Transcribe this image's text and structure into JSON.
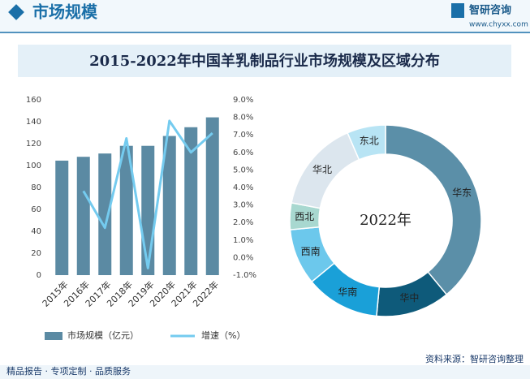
{
  "header": {
    "section": "市场规模",
    "brand": "智研咨询",
    "url": "www.chyxx.com"
  },
  "title": "2015-2022年中国羊乳制品行业市场规模及区域分布",
  "chart_data": [
    {
      "type": "bar",
      "categories": [
        "2015年",
        "2016年",
        "2017年",
        "2018年",
        "2019年",
        "2020年",
        "2021年",
        "2022年"
      ],
      "series": [
        {
          "name": "市场规模（亿元）",
          "color": "#5b8aa3",
          "values": [
            104.5,
            108,
            111,
            118,
            118,
            127,
            135,
            144
          ]
        },
        {
          "name": "增速（%）",
          "type": "line",
          "axis": "y2",
          "color": "#74cbef",
          "values": [
            null,
            3.8,
            1.7,
            6.8,
            -0.6,
            7.8,
            6.0,
            7.1
          ]
        }
      ],
      "ylim": [
        0,
        160
      ],
      "yticks": [
        0,
        20,
        40,
        60,
        80,
        100,
        120,
        140,
        160
      ],
      "y2lim": [
        -1,
        9
      ],
      "y2ticks": [
        {
          "value": -1,
          "label": "-1.0%"
        },
        {
          "value": 0,
          "label": "0.0%"
        },
        {
          "value": 1,
          "label": "1.0%"
        },
        {
          "value": 2,
          "label": "2.0%"
        },
        {
          "value": 3,
          "label": "3.0%"
        },
        {
          "value": 4,
          "label": "4.0%"
        },
        {
          "value": 5,
          "label": "5.0%"
        },
        {
          "value": 6,
          "label": "6.0%"
        },
        {
          "value": 7,
          "label": "7.0%"
        },
        {
          "value": 8,
          "label": "8.0%"
        },
        {
          "value": 9,
          "label": "9.0%"
        }
      ]
    },
    {
      "type": "pie",
      "donut": true,
      "center_label": "2022年",
      "categories": [
        "华东",
        "华中",
        "华南",
        "西南",
        "西北",
        "华北",
        "东北"
      ],
      "values": [
        39,
        12.5,
        12.5,
        9.5,
        4.5,
        15.5,
        6.5
      ],
      "colors": [
        "#5b8fa8",
        "#0e5a7a",
        "#1aa0d8",
        "#6cc8ec",
        "#a8d8d0",
        "#dce6ee",
        "#b8e4f4"
      ]
    }
  ],
  "footer": {
    "slogan": "精品报告 · 专项定制 · 品质服务",
    "source": "资料来源：智研咨询整理"
  }
}
